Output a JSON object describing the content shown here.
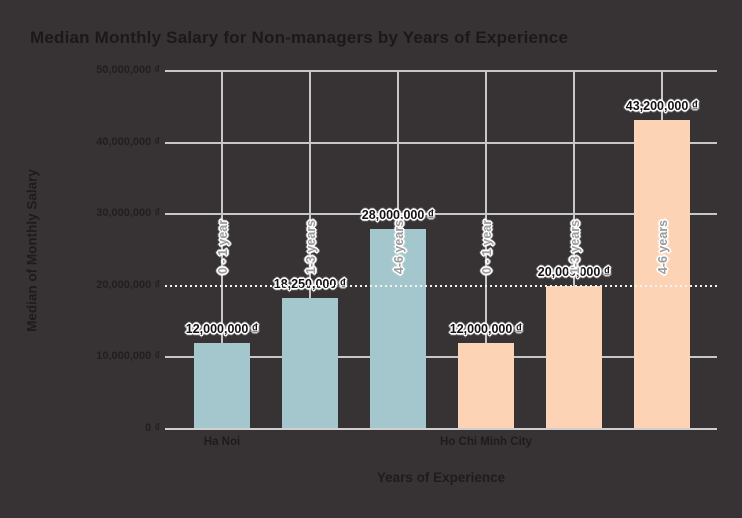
{
  "chart_data": {
    "type": "bar",
    "title": "Median Monthly Salary for Non-managers by Years of Experience",
    "xlabel": "Years of Experience",
    "ylabel": "Median of Monthly Salary",
    "ylim": [
      0,
      50000000
    ],
    "ytick_labels": [
      "0 ₫",
      "10,000,000 ₫",
      "20,000,000 ₫",
      "30,000,000 ₫",
      "40,000,000 ₫",
      "50,000,000 ₫"
    ],
    "ytick_values": [
      0,
      10000000,
      20000000,
      30000000,
      40000000,
      50000000
    ],
    "grid": true,
    "legend_position": "none",
    "reference_line": {
      "value": 20000000,
      "style": "dotted"
    },
    "categories": [
      "0 - 1 year",
      "1-3 years",
      "4-6 years"
    ],
    "groups": [
      {
        "city": "Ha Noi",
        "bar_color": "#a4c6cd",
        "bars": [
          {
            "experience": "0 - 1 year",
            "value": 12000000,
            "label": "12,000,000 ₫"
          },
          {
            "experience": "1-3 years",
            "value": 18250000,
            "label": "18,250,000 ₫"
          },
          {
            "experience": "4-6 years",
            "value": 28000000,
            "label": "28,000,000 ₫"
          }
        ]
      },
      {
        "city": "Ho Chi Minh City",
        "bar_color": "#fdd3b6",
        "bars": [
          {
            "experience": "0 - 1 year",
            "value": 12000000,
            "label": "12,000,000 ₫"
          },
          {
            "experience": "1-3 years",
            "value": 20000000,
            "label": "20,000,000 ₫"
          },
          {
            "experience": "4-6 years",
            "value": 43200000,
            "label": "43,200,000 ₫"
          }
        ]
      }
    ]
  },
  "colors": {
    "background": "#373334",
    "dark_text": "#1e1b1c",
    "gridline": "#c7c7c7",
    "reference_line": "#f2f2f2",
    "rotated_label": "#9b9b9b"
  }
}
